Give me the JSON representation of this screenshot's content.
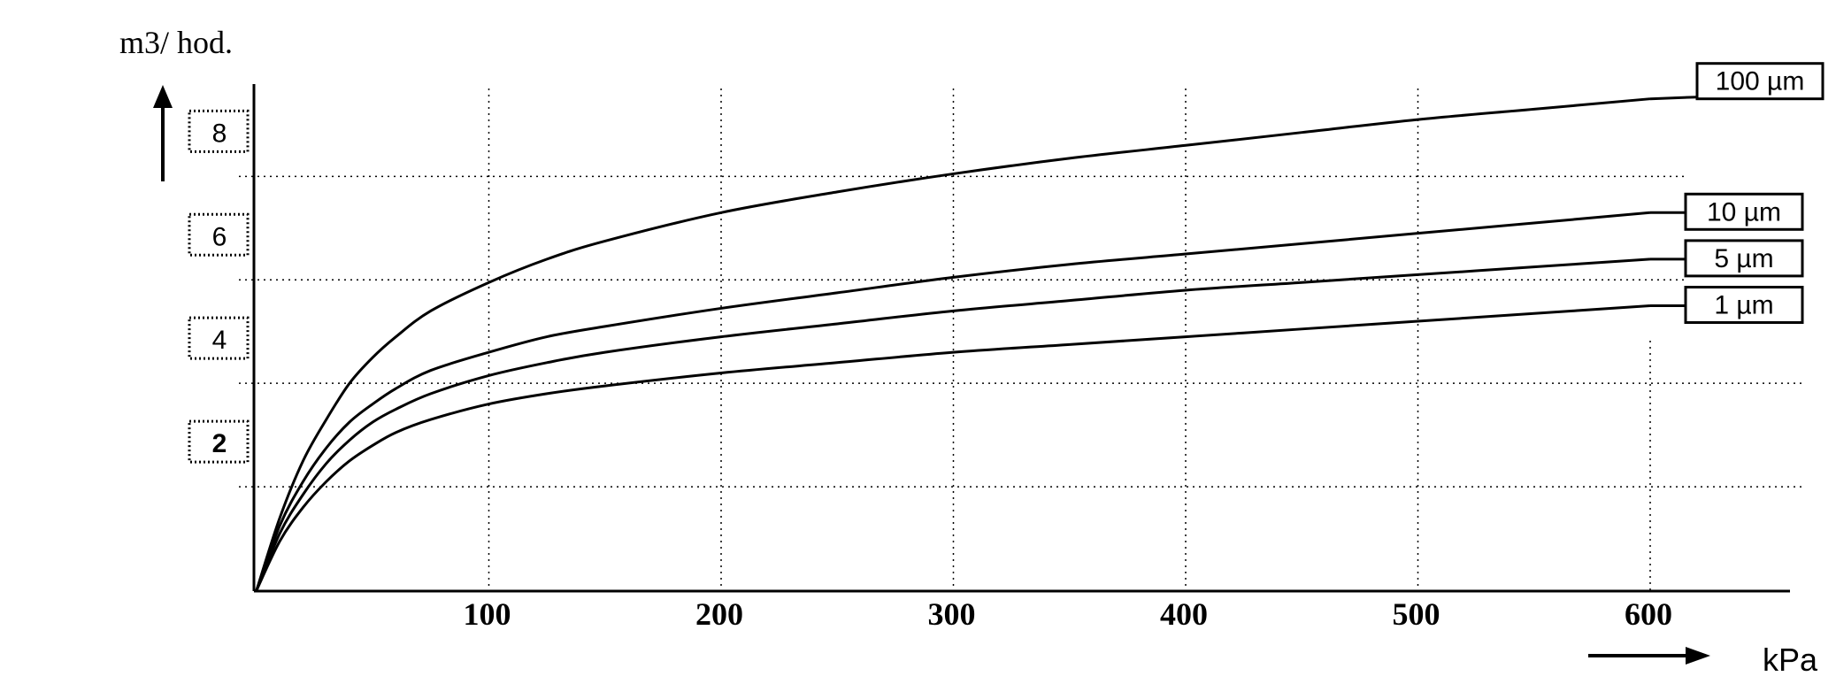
{
  "chart_data": {
    "type": "line",
    "y_unit_label": "m3/ hod.",
    "x_unit_label": "kPa",
    "x_ticks": [
      "100",
      "200",
      "300",
      "400",
      "500",
      "600"
    ],
    "y_ticks": [
      "2",
      "4",
      "6",
      "8"
    ],
    "xlim": [
      0,
      600
    ],
    "ylim": [
      0,
      9.7
    ],
    "grid": true,
    "series": [
      {
        "name": "100 µm",
        "x": [
          0,
          10,
          20,
          30,
          40,
          50,
          60,
          75,
          100,
          125,
          150,
          200,
          250,
          300,
          350,
          400,
          450,
          500,
          550,
          600
        ],
        "y": [
          0,
          1.4,
          2.5,
          3.3,
          4.0,
          4.5,
          4.9,
          5.4,
          5.95,
          6.4,
          6.75,
          7.3,
          7.7,
          8.05,
          8.35,
          8.6,
          8.85,
          9.1,
          9.3,
          9.5
        ]
      },
      {
        "name": "10 µm",
        "x": [
          0,
          10,
          20,
          30,
          40,
          50,
          60,
          75,
          100,
          125,
          150,
          200,
          250,
          300,
          350,
          400,
          450,
          500,
          550,
          600
        ],
        "y": [
          0,
          1.25,
          2.1,
          2.75,
          3.25,
          3.6,
          3.9,
          4.25,
          4.6,
          4.9,
          5.1,
          5.45,
          5.75,
          6.05,
          6.3,
          6.5,
          6.7,
          6.9,
          7.1,
          7.3
        ]
      },
      {
        "name": "5 µm",
        "x": [
          0,
          10,
          20,
          30,
          40,
          50,
          60,
          75,
          100,
          125,
          150,
          200,
          250,
          300,
          350,
          400,
          450,
          500,
          550,
          600
        ],
        "y": [
          0,
          1.1,
          1.85,
          2.45,
          2.9,
          3.25,
          3.5,
          3.8,
          4.15,
          4.4,
          4.6,
          4.9,
          5.15,
          5.4,
          5.6,
          5.8,
          5.95,
          6.1,
          6.25,
          6.4
        ]
      },
      {
        "name": "1 µm",
        "x": [
          0,
          10,
          20,
          30,
          40,
          50,
          60,
          75,
          100,
          125,
          150,
          200,
          250,
          300,
          350,
          400,
          450,
          500,
          550,
          600
        ],
        "y": [
          0,
          0.95,
          1.6,
          2.1,
          2.5,
          2.8,
          3.05,
          3.3,
          3.6,
          3.8,
          3.95,
          4.2,
          4.4,
          4.6,
          4.75,
          4.9,
          5.05,
          5.2,
          5.35,
          5.5
        ]
      }
    ]
  }
}
